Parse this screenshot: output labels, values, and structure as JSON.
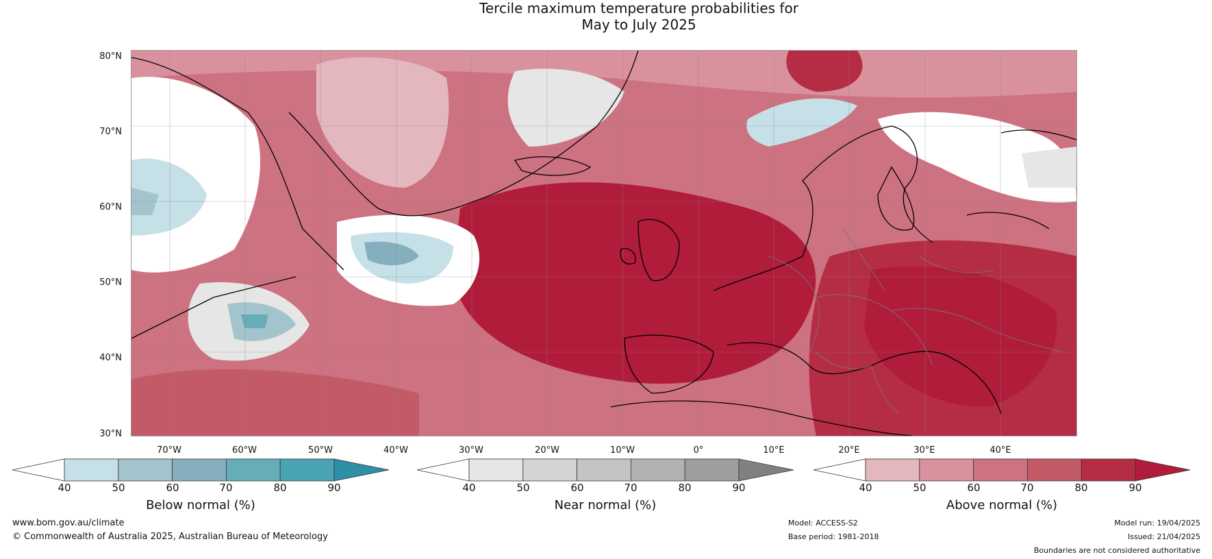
{
  "title_line1": "Tercile maximum temperature probabilities for",
  "title_line2": "May to July 2025",
  "lat_labels": [
    "80°N",
    "70°N",
    "60°N",
    "50°N",
    "40°N",
    "30°N"
  ],
  "lon_labels": [
    "70°W",
    "60°W",
    "50°W",
    "40°W",
    "30°W",
    "20°W",
    "10°W",
    "0°",
    "10°E",
    "20°E",
    "30°E",
    "40°E"
  ],
  "colorbars": [
    {
      "label": "Below normal (%)",
      "ticks": [
        "40",
        "50",
        "60",
        "70",
        "80",
        "90"
      ],
      "colors": [
        "#ffffff",
        "#c6e0e8",
        "#a3c4cc",
        "#85aebf",
        "#67adb8",
        "#4aa2b5",
        "#2e8fa5"
      ]
    },
    {
      "label": "Near normal (%)",
      "ticks": [
        "40",
        "50",
        "60",
        "70",
        "80",
        "90"
      ],
      "colors": [
        "#ffffff",
        "#e6e6e6",
        "#d4d4d4",
        "#c4c4c4",
        "#b2b2b2",
        "#9e9e9e",
        "#808080"
      ]
    },
    {
      "label": "Above normal (%)",
      "ticks": [
        "40",
        "50",
        "60",
        "70",
        "80",
        "90"
      ],
      "colors": [
        "#ffffff",
        "#e4b7bf",
        "#d9919e",
        "#cd7280",
        "#c35a68",
        "#b52d44",
        "#b01c3a"
      ]
    }
  ],
  "footer": {
    "website": "www.bom.gov.au/climate",
    "copyright": "© Commonwealth of Australia 2025, Australian Bureau of Meteorology",
    "model": "Model: ACCESS-S2",
    "base_period": "Base period: 1981-2018",
    "model_run": "Model run: 19/04/2025",
    "issued": "Issued: 21/04/2025",
    "disclaimer": "Boundaries are not considered authoritative"
  }
}
